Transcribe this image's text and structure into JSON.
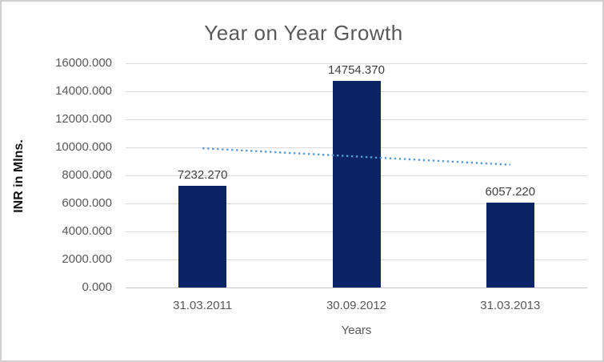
{
  "chart_data": {
    "type": "bar",
    "title": "Year on Year Growth",
    "xlabel": "Years",
    "ylabel": "INR in Mlns.",
    "categories": [
      "31.03.2011",
      "30.09.2012",
      "31.03.2013"
    ],
    "values": [
      7232.27,
      14754.37,
      6057.22
    ],
    "data_labels": [
      "7232.270",
      "14754.370",
      "6057.220"
    ],
    "ylim": [
      0,
      16000
    ],
    "ytick_step": 2000,
    "ytick_labels": [
      "0.000",
      "2000.000",
      "4000.000",
      "6000.000",
      "8000.000",
      "10000.000",
      "12000.000",
      "14000.000",
      "16000.000"
    ],
    "grid": "horizontal",
    "legend_position": "none",
    "trendline": {
      "type": "linear",
      "style": "dotted",
      "start_value": 9935.45,
      "end_value": 8760.45,
      "color": "#5b9bd5"
    },
    "colors": {
      "bar": "#0a2466",
      "gridline": "#d9d9d9",
      "axis_line": "#c6c6c6",
      "title_text": "#595959",
      "tick_text": "#595959",
      "data_label_text": "#404040",
      "y_axis_title_text": "#111111",
      "frame_border": "#d1cfcf",
      "background": "#ffffff"
    }
  }
}
